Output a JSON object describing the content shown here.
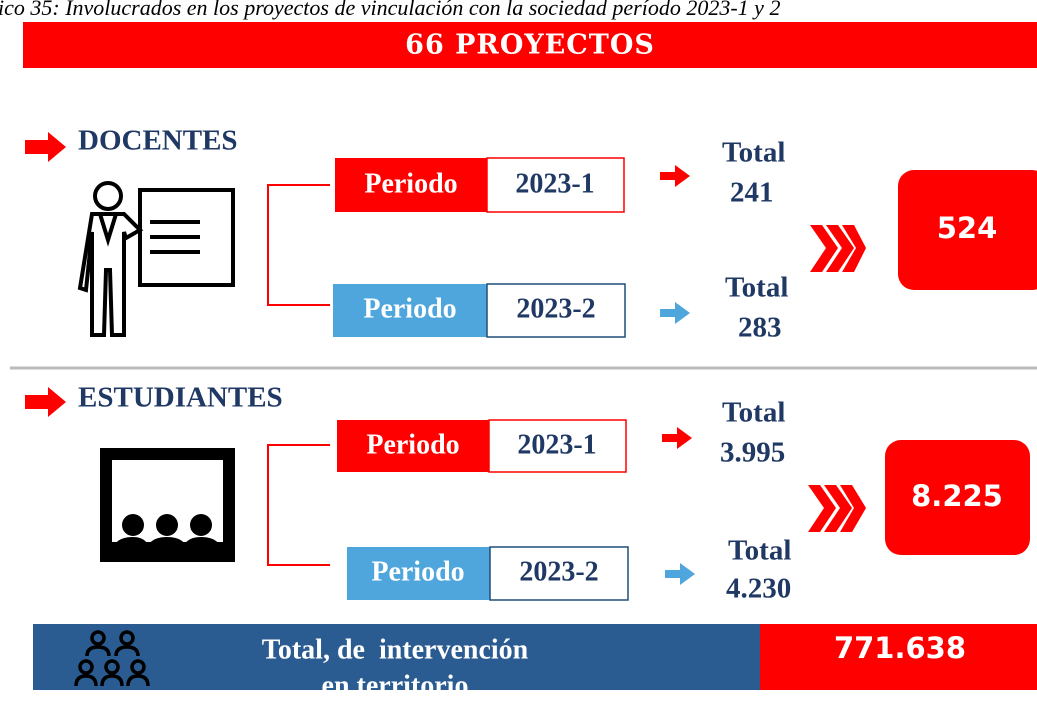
{
  "caption": "ico 35: Involucrados en los proyectos de vinculación con la sociedad período 2023-1 y 2",
  "banner": "66 PROYECTOS",
  "sections": [
    {
      "title": "DOCENTES",
      "sum": "524",
      "periods": [
        {
          "label": "Periodo",
          "period": "2023-1",
          "total_label": "Total",
          "total": "241"
        },
        {
          "label": "Periodo",
          "period": "2023-2",
          "total_label": "Total",
          "total": "283"
        }
      ]
    },
    {
      "title": "ESTUDIANTES",
      "sum": "8.225",
      "periods": [
        {
          "label": "Periodo",
          "period": "2023-1",
          "total_label": "Total",
          "total": "3.995"
        },
        {
          "label": "Periodo",
          "period": "2023-2",
          "total_label": "Total",
          "total": "4.230"
        }
      ]
    }
  ],
  "footer": {
    "label_lines": [
      "Total, de  intervención",
      "en territorio"
    ],
    "value": "771.638"
  }
}
